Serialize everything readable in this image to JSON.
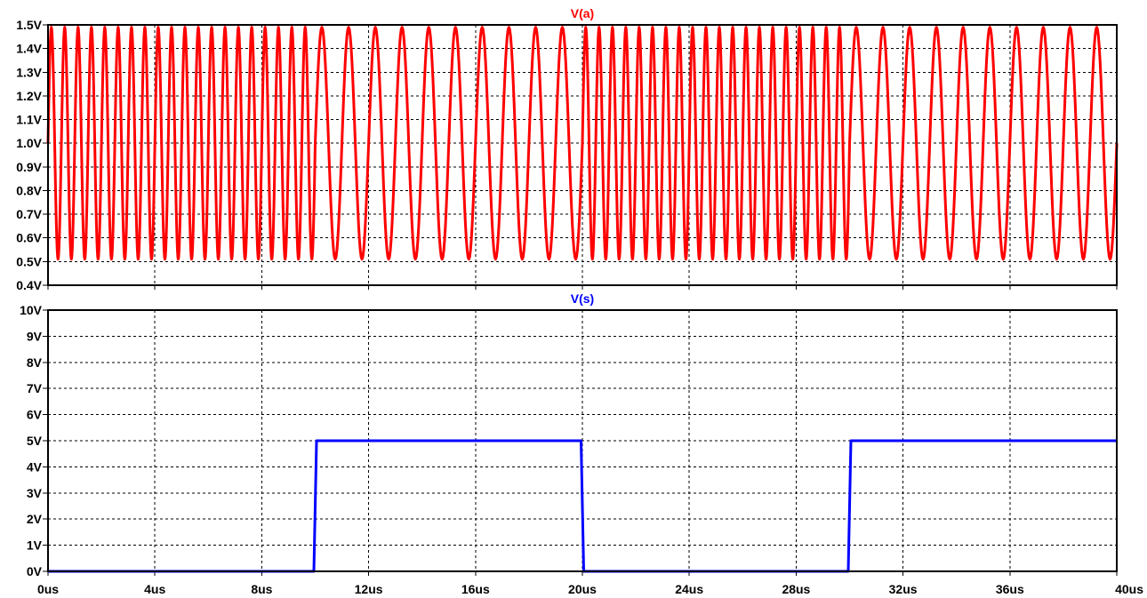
{
  "chart_data": [
    {
      "type": "line",
      "title": "V(a)",
      "color": "#ff0000",
      "x_unit": "us",
      "xlim": [
        0,
        40
      ],
      "ylim": [
        0.4,
        1.5
      ],
      "grid": true,
      "x_ticks": [
        "0us",
        "4us",
        "8us",
        "12us",
        "16us",
        "20us",
        "24us",
        "28us",
        "32us",
        "36us",
        "40us"
      ],
      "y_ticks": [
        "0.4V",
        "0.5V",
        "0.6V",
        "0.7V",
        "0.8V",
        "0.9V",
        "1.0V",
        "1.1V",
        "1.2V",
        "1.3V",
        "1.4V",
        "1.5V"
      ],
      "series": [
        {
          "name": "V(a)",
          "waveform": "sine",
          "offset": 1.0,
          "amplitude": 0.49,
          "segments": [
            {
              "t_start": 0,
              "t_end": 10,
              "frequency_MHz": 2.0
            },
            {
              "t_start": 10,
              "t_end": 20,
              "frequency_MHz": 1.0
            },
            {
              "t_start": 20,
              "t_end": 30,
              "frequency_MHz": 2.0
            },
            {
              "t_start": 30,
              "t_end": 40,
              "frequency_MHz": 1.0
            }
          ]
        }
      ]
    },
    {
      "type": "line",
      "title": "V(s)",
      "color": "#0000ff",
      "x_unit": "us",
      "xlim": [
        0,
        40
      ],
      "ylim": [
        0,
        10
      ],
      "grid": true,
      "x_ticks": [
        "0us",
        "4us",
        "8us",
        "12us",
        "16us",
        "20us",
        "24us",
        "28us",
        "32us",
        "36us",
        "40us"
      ],
      "y_ticks": [
        "0V",
        "1V",
        "2V",
        "3V",
        "4V",
        "5V",
        "6V",
        "7V",
        "8V",
        "9V",
        "10V"
      ],
      "series": [
        {
          "name": "V(s)",
          "x": [
            0,
            9.95,
            10.05,
            19.95,
            20.05,
            29.95,
            30.05,
            40
          ],
          "y": [
            0,
            0,
            5,
            5,
            0,
            0,
            5,
            5
          ]
        }
      ]
    }
  ]
}
